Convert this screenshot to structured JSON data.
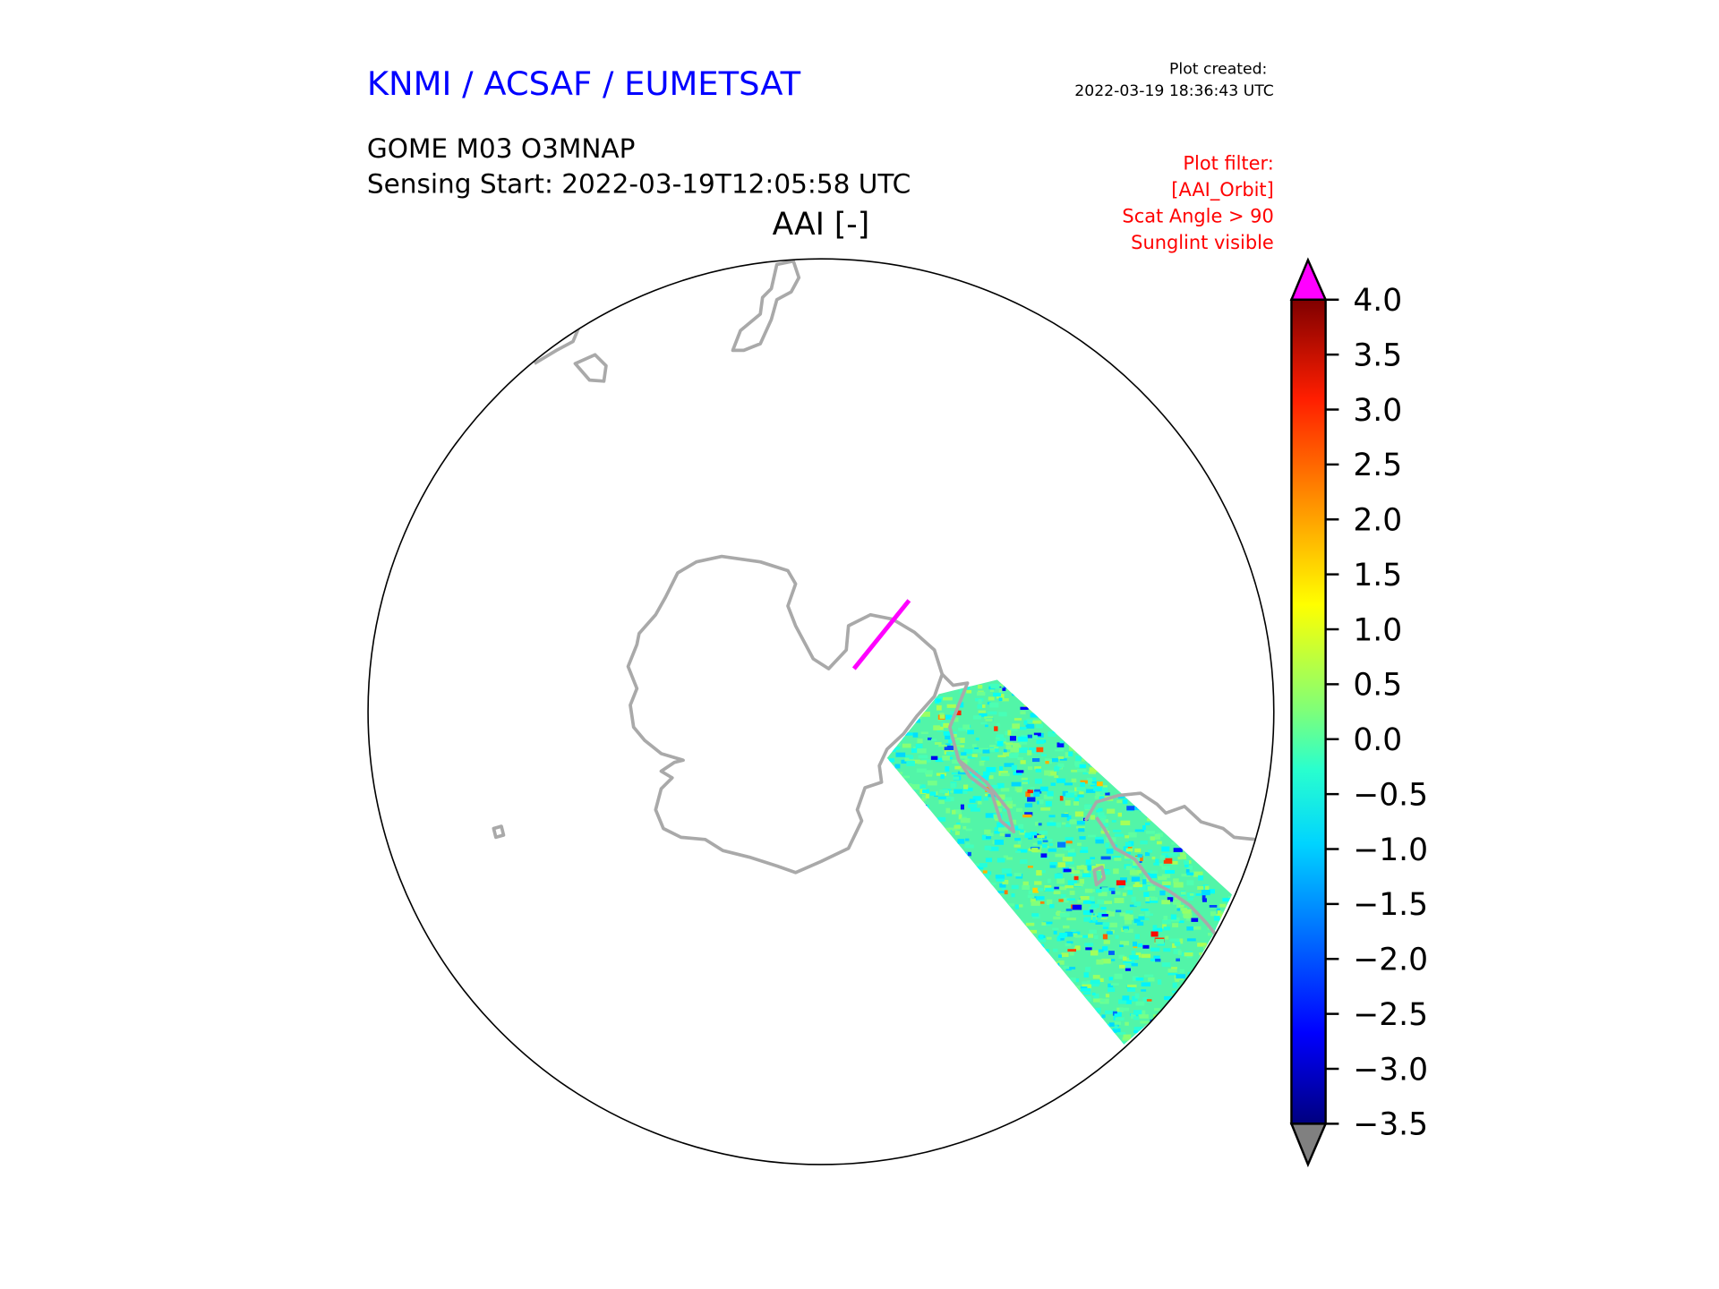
{
  "header": {
    "org": "KNMI / ACSAF / EUMETSAT",
    "created_label": "Plot created:",
    "created_time": "2022-03-19 18:36:43 UTC",
    "product": "GOME M03 O3MNAP",
    "sensing_start": "Sensing Start: 2022-03-19T12:05:58 UTC",
    "variable": "AAI [-]",
    "filter_lines": [
      "Plot filter:",
      "[AAI_Orbit]",
      "Scat Angle > 90",
      "Sunglint visible"
    ]
  },
  "colors": {
    "org": "#0000ff",
    "filter": "#ff0000",
    "coast": "#a9a9a9",
    "over": "#ff00ff",
    "under": "#808080"
  },
  "chart_data": {
    "type": "heatmap",
    "title": "AAI [-]",
    "projection": "south polar stereographic",
    "colorbar": {
      "range": [
        -3.5,
        4.0
      ],
      "ticks": [
        "4.0",
        "3.5",
        "3.0",
        "2.5",
        "2.0",
        "1.5",
        "1.0",
        "0.5",
        "0.0",
        "−0.5",
        "−1.0",
        "−1.5",
        "−2.0",
        "−2.5",
        "−3.0",
        "−3.5"
      ],
      "extend": "both",
      "colormap": "jet"
    },
    "swath_typical_range": [
      -1.0,
      1.0
    ]
  }
}
